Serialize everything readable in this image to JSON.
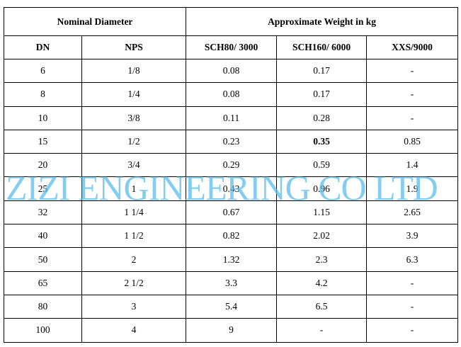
{
  "table": {
    "group_headers": [
      "Nominal Diameter",
      "Approximate Weight in kg"
    ],
    "columns": [
      "DN",
      "NPS",
      "SCH80/ 3000",
      "SCH160/ 6000",
      "XXS/9000"
    ],
    "rows": [
      [
        "6",
        "1/8",
        "0.08",
        "0.17",
        "-"
      ],
      [
        "8",
        "1/4",
        "0.08",
        "0.17",
        "-"
      ],
      [
        "10",
        "3/8",
        "0.11",
        "0.28",
        "-"
      ],
      [
        "15",
        "1/2",
        "0.23",
        "0.35",
        "0.85"
      ],
      [
        "20",
        "3/4",
        "0.29",
        "0.59",
        "1.4"
      ],
      [
        "25",
        "1",
        "0.43",
        "0.96",
        "1.9"
      ],
      [
        "32",
        "1 1/4",
        "0.67",
        "1.15",
        "2.65"
      ],
      [
        "40",
        "1 1/2",
        "0.82",
        "2.02",
        "3.9"
      ],
      [
        "50",
        "2",
        "1.32",
        "2.3",
        "6.3"
      ],
      [
        "65",
        "2 1/2",
        "3.3",
        "4.2",
        "-"
      ],
      [
        "80",
        "3",
        "5.4",
        "6.5",
        "-"
      ],
      [
        "100",
        "4",
        "9",
        "-",
        "-"
      ]
    ]
  },
  "watermark": "ZIZI ENGINEERING CO LTD"
}
